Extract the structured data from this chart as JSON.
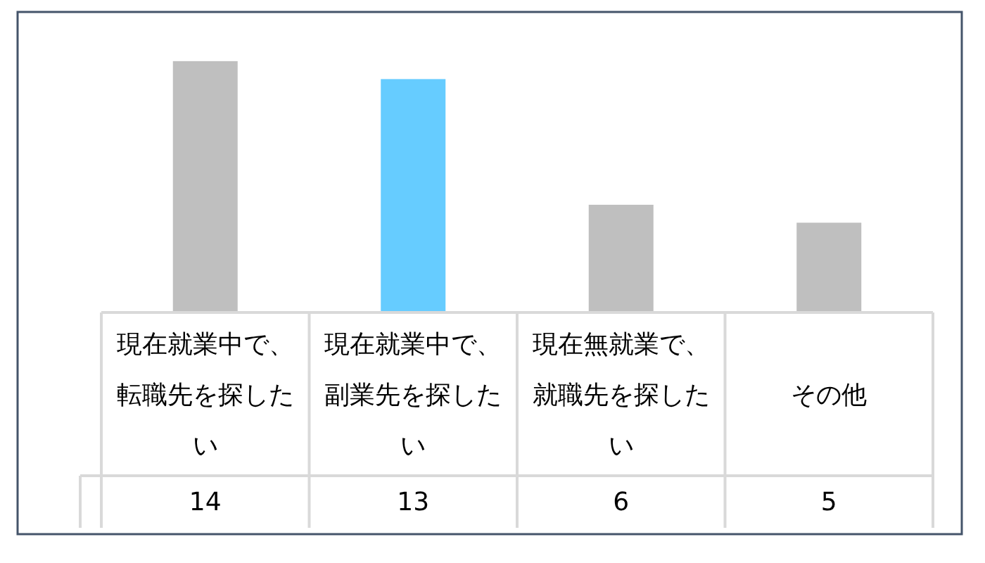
{
  "chart_data": {
    "type": "bar",
    "categories": [
      "現在就業中で、転職先を探したい",
      "現在就業中で、副業先を探したい",
      "現在無就業で、就職先を探したい",
      "その他"
    ],
    "values": [
      14,
      13,
      6,
      5
    ],
    "colors": [
      "#bfbfbf",
      "#66ccff",
      "#bfbfbf",
      "#bfbfbf"
    ],
    "data_labels": true
  }
}
